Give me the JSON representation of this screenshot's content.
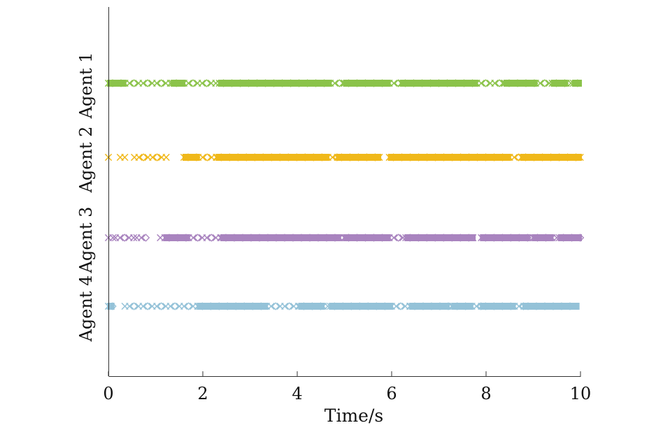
{
  "chart_data": {
    "type": "scatter",
    "xlabel": "Time/s",
    "ylabel": "",
    "xlim": [
      0,
      10
    ],
    "x_ticks": [
      {
        "label": "0",
        "value": 0
      },
      {
        "label": "2",
        "value": 2
      },
      {
        "label": "4",
        "value": 4
      },
      {
        "label": "6",
        "value": 6
      },
      {
        "label": "8",
        "value": 8
      },
      {
        "label": "10",
        "value": 10
      }
    ],
    "marker_styles": [
      "cross",
      "diamond"
    ],
    "grid": false,
    "legend": "none",
    "series": [
      {
        "name": "Agent 1",
        "color": "#8bc34a",
        "dense_segments": [
          [
            0.0,
            0.35
          ],
          [
            1.35,
            1.6
          ],
          [
            2.35,
            4.7
          ],
          [
            5.0,
            5.95
          ],
          [
            6.2,
            7.8
          ],
          [
            8.4,
            9.05
          ],
          [
            9.4,
            9.7
          ],
          [
            9.85,
            10.0
          ]
        ],
        "sparse_segments": [
          [
            0.35,
            1.35
          ],
          [
            1.6,
            2.35
          ],
          [
            4.7,
            5.0
          ],
          [
            5.95,
            6.2
          ],
          [
            7.8,
            8.4
          ],
          [
            9.05,
            9.4
          ],
          [
            9.7,
            9.85
          ]
        ]
      },
      {
        "name": "Agent 2",
        "color": "#f0b81a",
        "dense_segments": [
          [
            1.6,
            1.9
          ],
          [
            2.3,
            4.65
          ],
          [
            4.85,
            5.75
          ],
          [
            5.95,
            8.5
          ],
          [
            8.75,
            10.0
          ]
        ],
        "sparse_segments": [
          [
            0.0,
            0.05
          ],
          [
            0.25,
            0.35
          ],
          [
            0.55,
            1.3
          ],
          [
            1.9,
            2.3
          ],
          [
            4.65,
            4.85
          ],
          [
            8.5,
            8.75
          ]
        ]
      },
      {
        "name": "Agent 3",
        "color": "#a984bf",
        "dense_segments": [
          [
            1.2,
            1.7
          ],
          [
            2.4,
            4.9
          ],
          [
            5.0,
            5.95
          ],
          [
            6.3,
            7.75
          ],
          [
            7.9,
            8.9
          ],
          [
            9.0,
            9.4
          ],
          [
            9.55,
            10.0
          ]
        ],
        "sparse_segments": [
          [
            0.0,
            0.1
          ],
          [
            0.15,
            0.55
          ],
          [
            0.6,
            0.8
          ],
          [
            1.1,
            1.2
          ],
          [
            1.7,
            2.4
          ],
          [
            4.9,
            5.0
          ],
          [
            5.95,
            6.3
          ],
          [
            8.9,
            9.0
          ],
          [
            9.4,
            9.55
          ]
        ]
      },
      {
        "name": "Agent 4",
        "color": "#94c2d8",
        "dense_segments": [
          [
            0.0,
            0.1
          ],
          [
            1.9,
            3.35
          ],
          [
            4.05,
            4.55
          ],
          [
            4.7,
            6.0
          ],
          [
            6.4,
            7.2
          ],
          [
            7.3,
            7.7
          ],
          [
            7.9,
            8.6
          ],
          [
            8.8,
            9.95
          ]
        ],
        "sparse_segments": [
          [
            0.35,
            1.9
          ],
          [
            3.35,
            4.05
          ],
          [
            4.55,
            4.7
          ],
          [
            6.0,
            6.4
          ],
          [
            7.2,
            7.3
          ],
          [
            7.7,
            7.9
          ],
          [
            8.6,
            8.8
          ]
        ]
      }
    ]
  }
}
